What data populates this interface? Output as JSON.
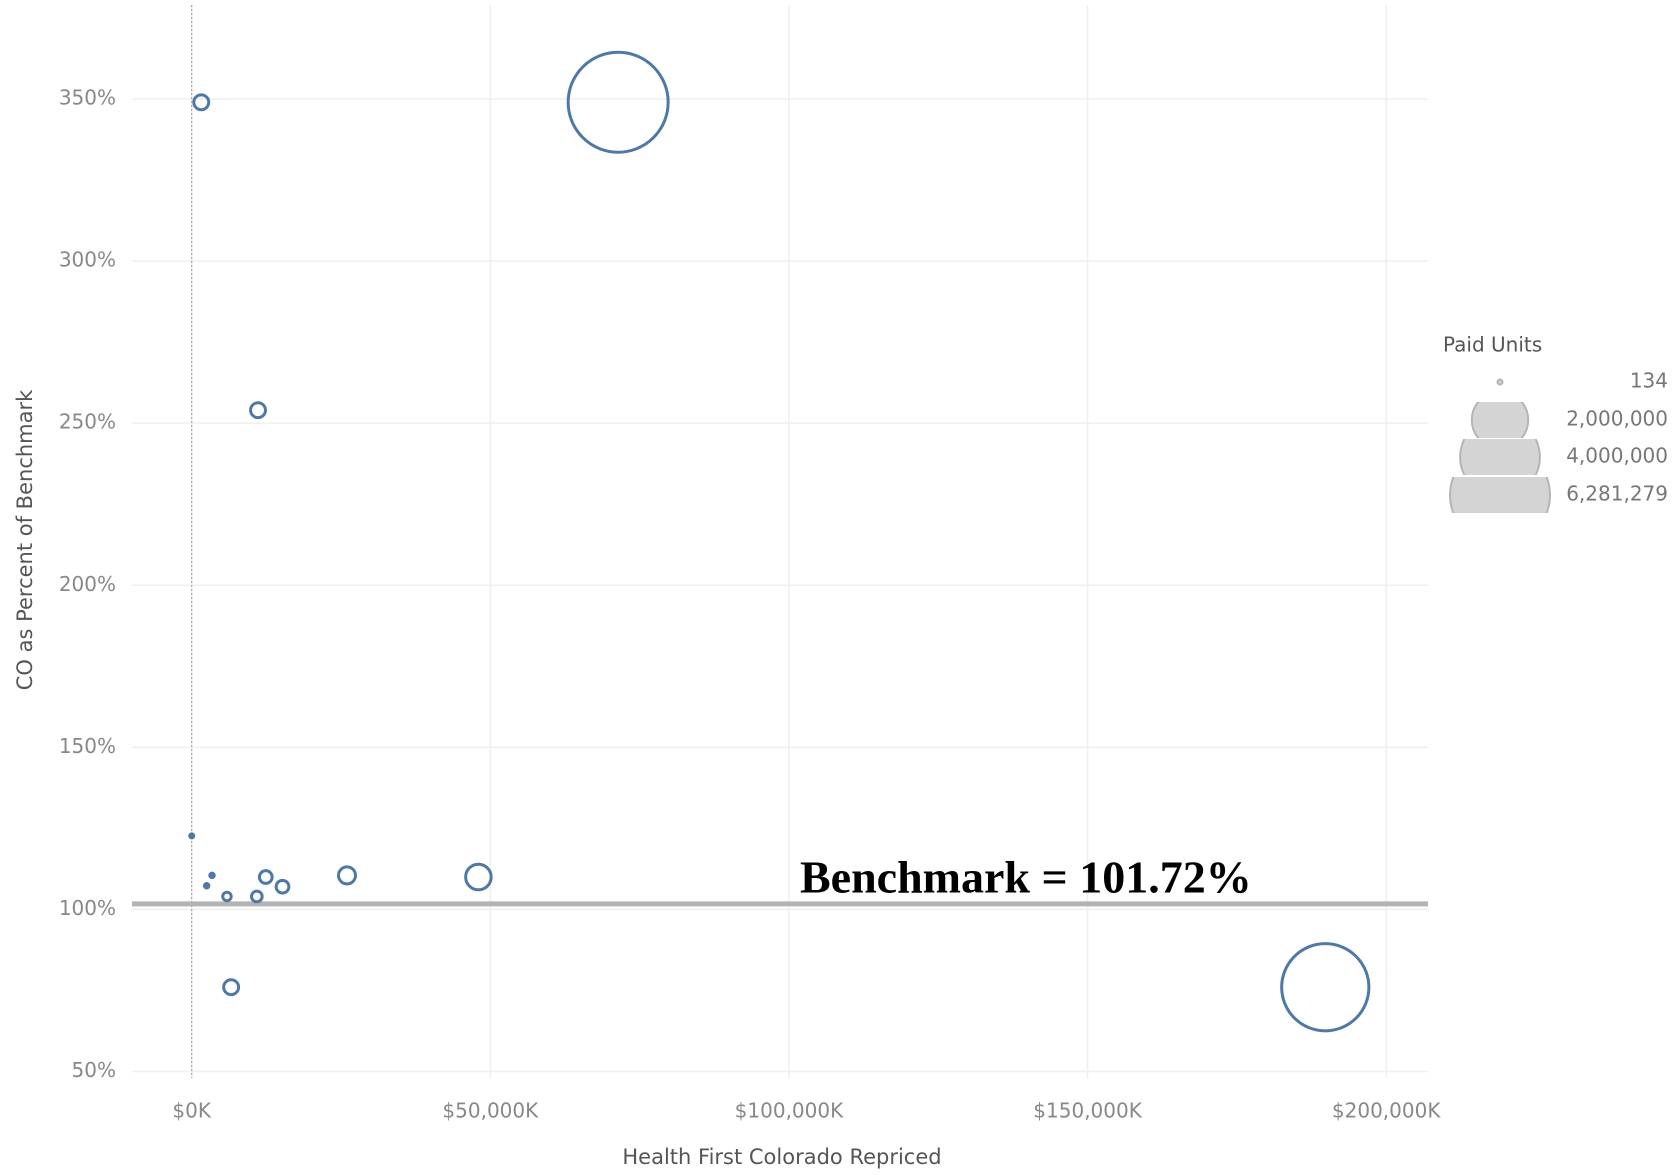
{
  "chart_data": {
    "type": "bubble",
    "x_label": "Health First Colorado Repriced",
    "y_label": "CO as Percent of Benchmark",
    "x": [
      1600,
      71400,
      11100,
      0,
      3400,
      2500,
      5900,
      10900,
      12400,
      15200,
      26000,
      48000,
      6600,
      189800
    ],
    "y": [
      349,
      349,
      254,
      122.7,
      110.5,
      107.3,
      104,
      104,
      110,
      107,
      110.5,
      110,
      76,
      76
    ],
    "sizes": [
      139000,
      6281279,
      139000,
      5000,
      26000,
      26000,
      45000,
      71000,
      102000,
      102000,
      182000,
      409000,
      139000,
      4780000
    ],
    "color": "#4e79a7",
    "xlim": [
      -10000,
      207000
    ],
    "ylim": [
      48,
      379
    ],
    "xticks": [
      {
        "value": 0,
        "label": "$0K"
      },
      {
        "value": 50000,
        "label": "$50,000K"
      },
      {
        "value": 100000,
        "label": "$100,000K"
      },
      {
        "value": 150000,
        "label": "$150,000K"
      },
      {
        "value": 200000,
        "label": "$200,000K"
      }
    ],
    "yticks": [
      {
        "value": 50,
        "label": "50%"
      },
      {
        "value": 100,
        "label": "100%"
      },
      {
        "value": 150,
        "label": "150%"
      },
      {
        "value": 200,
        "label": "200%"
      },
      {
        "value": 250,
        "label": "250%"
      },
      {
        "value": 300,
        "label": "300%"
      },
      {
        "value": 350,
        "label": "350%"
      }
    ],
    "grid": true,
    "benchmark": {
      "value": 101.72,
      "label": "Benchmark = 101.72%"
    },
    "size_legend": {
      "title": "Paid Units",
      "entries": [
        134,
        {
          "value": 2000000,
          "label": "2,000,000"
        },
        {
          "value": 4000000,
          "label": "4,000,000"
        },
        {
          "value": 6281279,
          "label": "6,281,279"
        }
      ]
    }
  }
}
